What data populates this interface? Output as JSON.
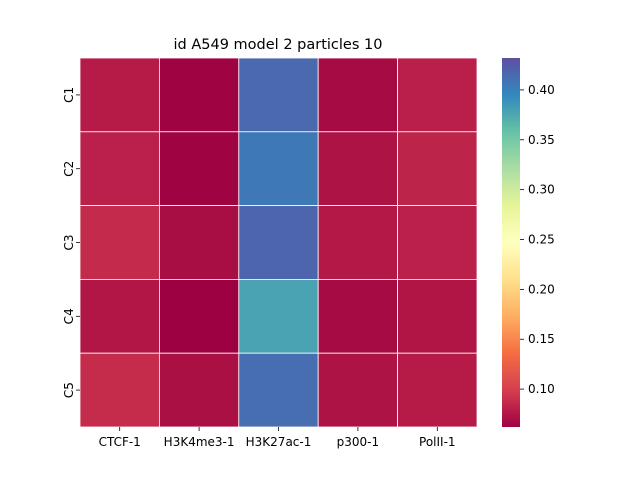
{
  "chart_data": {
    "type": "heatmap",
    "title": "id A549 model 2 particles 10",
    "x_categories": [
      "CTCF-1",
      "H3K4me3-1",
      "H3K27ac-1",
      "p300-1",
      "PolII-1"
    ],
    "y_categories": [
      "C1",
      "C2",
      "C3",
      "C4",
      "C5"
    ],
    "values": [
      [
        0.078,
        0.063,
        0.415,
        0.068,
        0.08
      ],
      [
        0.081,
        0.063,
        0.405,
        0.073,
        0.083
      ],
      [
        0.087,
        0.069,
        0.418,
        0.076,
        0.081
      ],
      [
        0.075,
        0.062,
        0.378,
        0.068,
        0.074
      ],
      [
        0.088,
        0.071,
        0.412,
        0.073,
        0.078
      ]
    ],
    "colormap": "Spectral",
    "vmin": 0.062,
    "vmax": 0.432,
    "colorbar_ticks": [
      "0.10",
      "0.15",
      "0.20",
      "0.25",
      "0.30",
      "0.35",
      "0.40"
    ],
    "colorbar_tick_values": [
      0.1,
      0.15,
      0.2,
      0.25,
      0.3,
      0.35,
      0.4
    ],
    "gridlines": "white"
  }
}
